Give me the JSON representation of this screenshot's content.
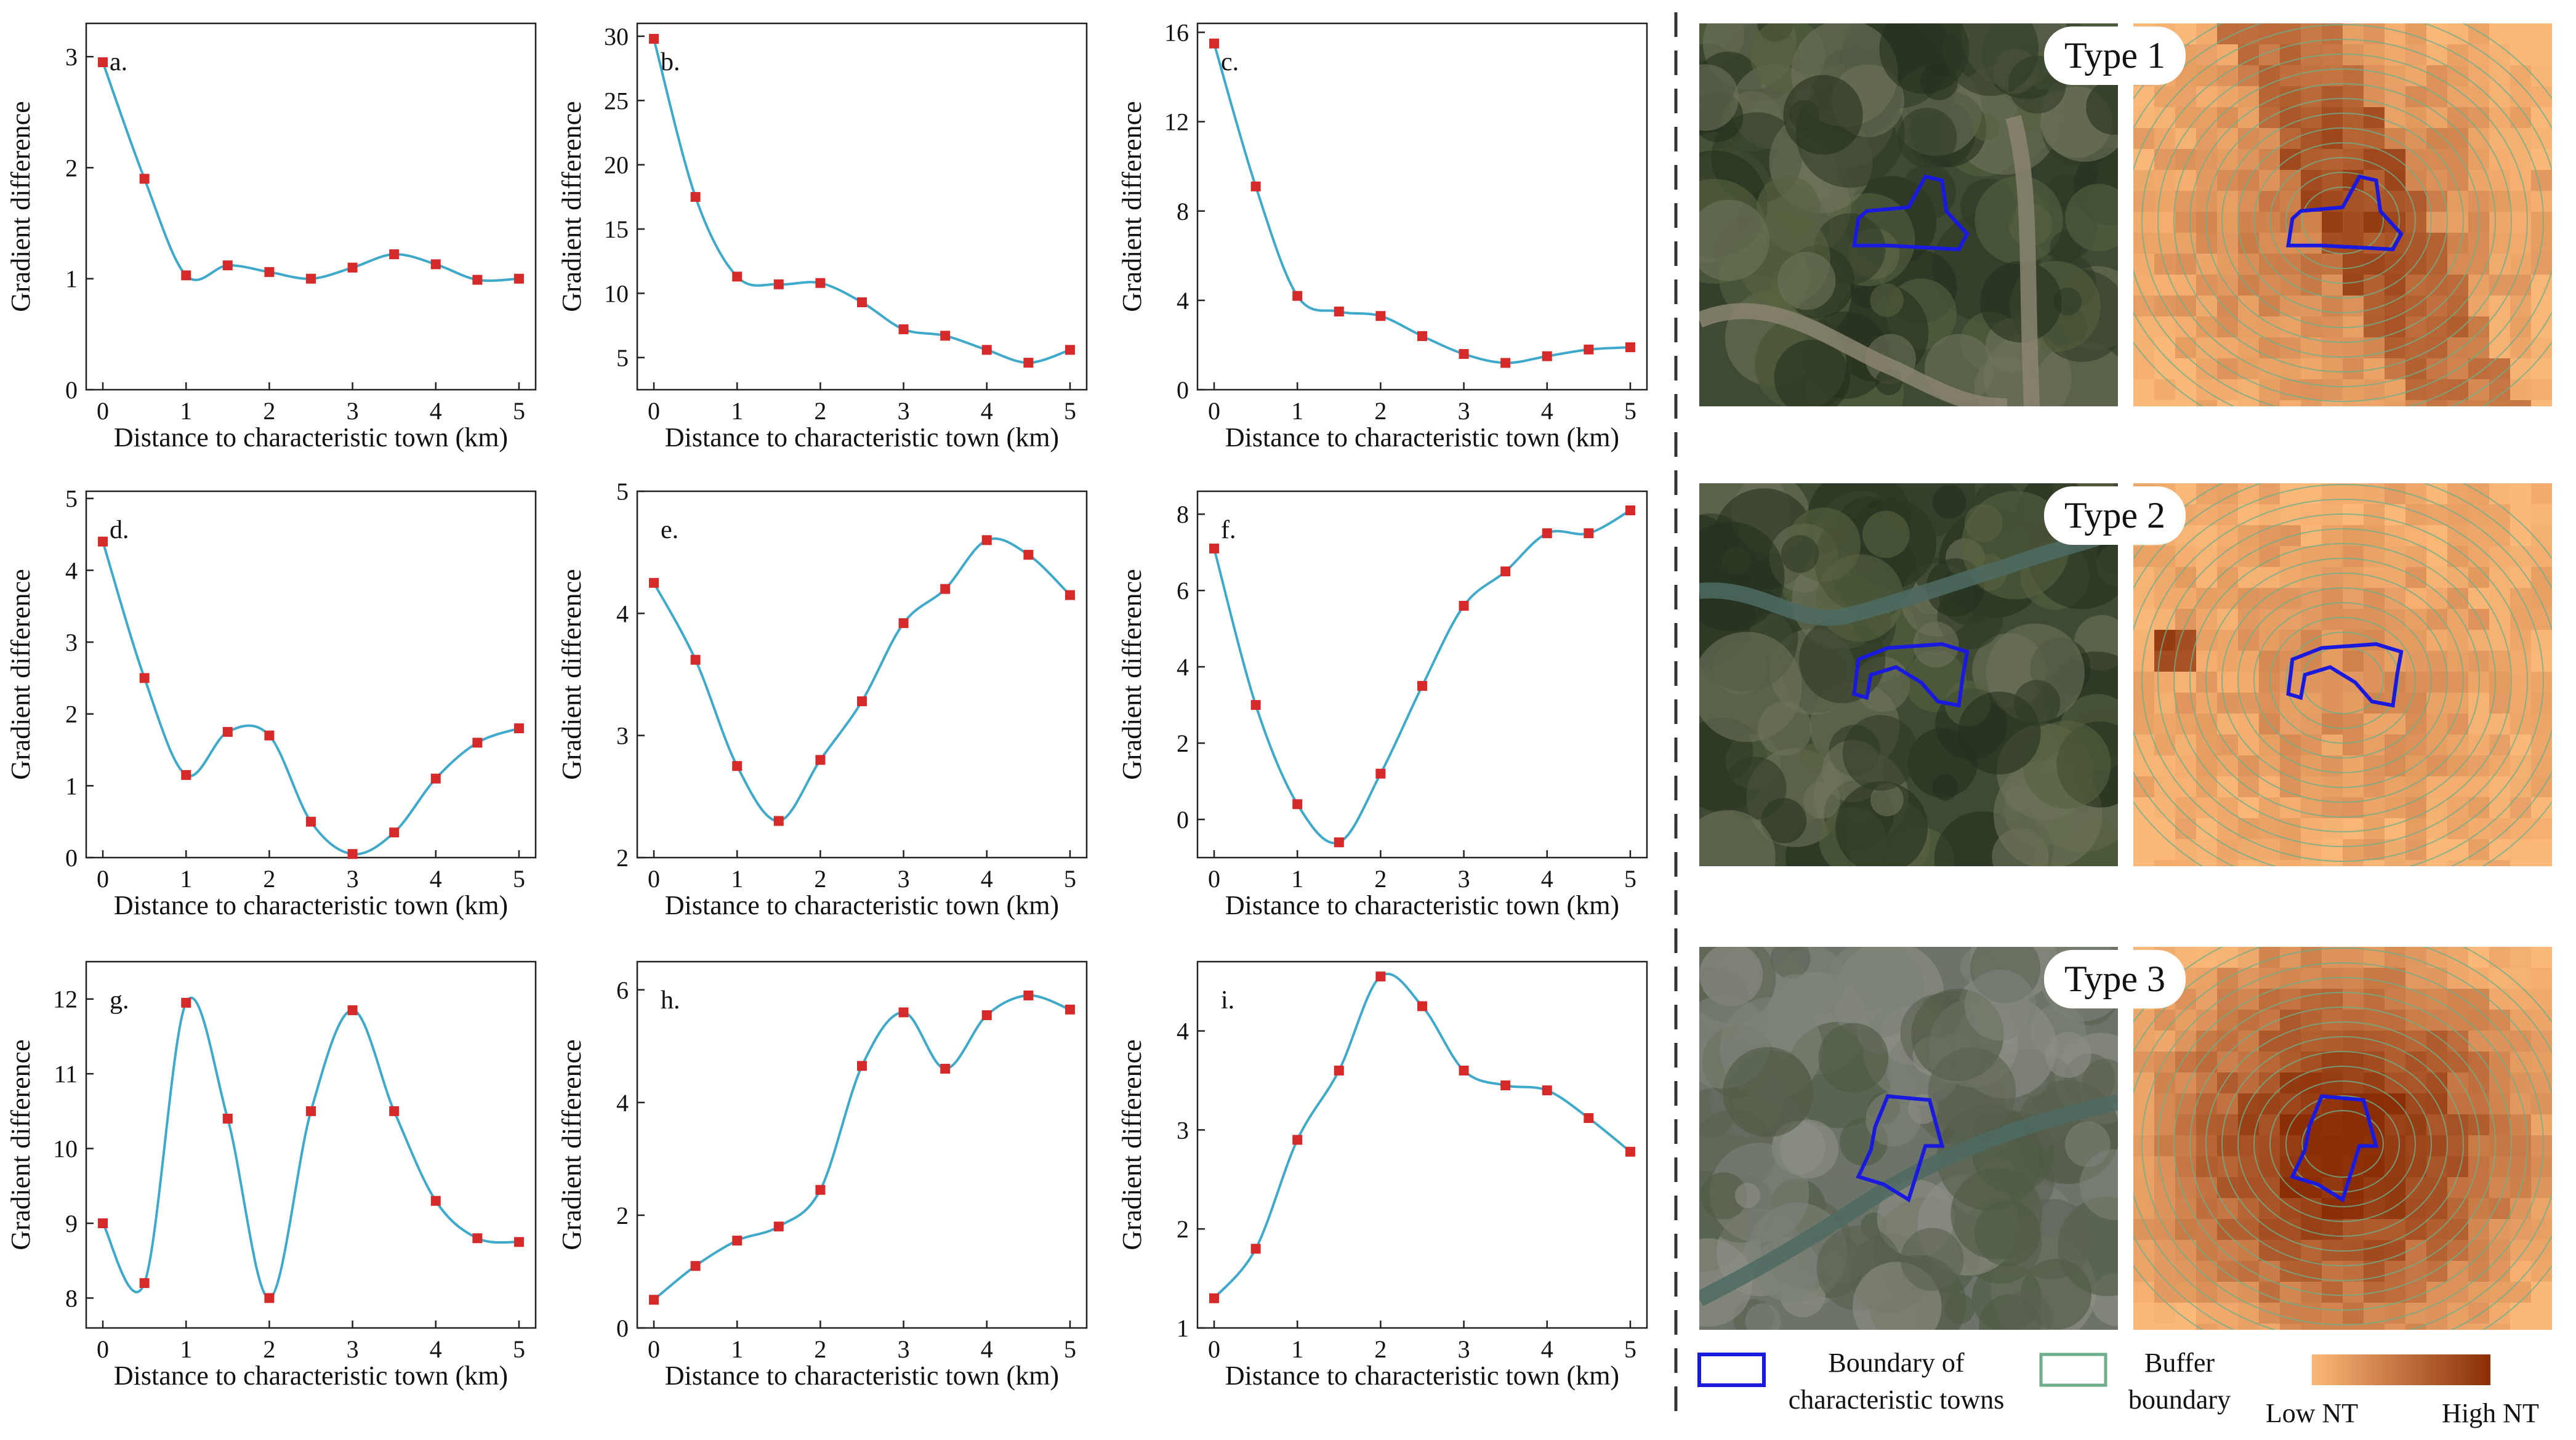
{
  "figure": {
    "divider_color": "#333333",
    "curve_color": "#3fa9c9",
    "marker_color": "#d62a2a",
    "boundary_color": "#1a1adf",
    "buffer_color": "#6fae8a",
    "nt_low_color": "#fbb878",
    "nt_high_color": "#8a2e08"
  },
  "chart_data": [
    {
      "id": "a",
      "panel_label": "a.",
      "type": "line",
      "xlabel": "Distance to characteristic town (km)",
      "ylabel": "Gradient difference",
      "x": [
        0,
        0.5,
        1,
        1.5,
        2,
        2.5,
        3,
        3.5,
        4,
        4.5,
        5
      ],
      "y": [
        2.95,
        1.9,
        1.03,
        1.12,
        1.06,
        1.0,
        1.1,
        1.22,
        1.13,
        0.99,
        1.0
      ],
      "ylim": [
        0,
        3.3
      ],
      "yticks": [
        0,
        1,
        2,
        3
      ],
      "ytick_labels": [
        "0",
        "1",
        "2",
        "3"
      ],
      "xticks": [
        0,
        1,
        2,
        3,
        4,
        5
      ],
      "xtick_labels": [
        "0",
        "1",
        "2",
        "3",
        "4",
        "5"
      ]
    },
    {
      "id": "b",
      "panel_label": "b.",
      "type": "line",
      "xlabel": "Distance to characteristic town (km)",
      "ylabel": "Gradient difference",
      "x": [
        0,
        0.5,
        1,
        1.5,
        2,
        2.5,
        3,
        3.5,
        4,
        4.5,
        5
      ],
      "y": [
        29.8,
        17.5,
        11.3,
        10.7,
        10.8,
        9.3,
        7.2,
        6.7,
        5.6,
        4.6,
        5.6
      ],
      "ylim": [
        2.5,
        31
      ],
      "yticks": [
        5,
        10,
        15,
        20,
        25,
        30
      ],
      "ytick_labels": [
        "5",
        "10",
        "15",
        "20",
        "25",
        "30"
      ],
      "xticks": [
        0,
        1,
        2,
        3,
        4,
        5
      ],
      "xtick_labels": [
        "0",
        "1",
        "2",
        "3",
        "4",
        "5"
      ]
    },
    {
      "id": "c",
      "panel_label": "c.",
      "type": "line",
      "xlabel": "Distance to characteristic town (km)",
      "ylabel": "Gradient difference",
      "x": [
        0,
        0.5,
        1,
        1.5,
        2,
        2.5,
        3,
        3.5,
        4,
        4.5,
        5
      ],
      "y": [
        15.5,
        9.1,
        4.2,
        3.5,
        3.3,
        2.4,
        1.6,
        1.2,
        1.5,
        1.8,
        1.9
      ],
      "ylim": [
        0,
        16.4
      ],
      "yticks": [
        0,
        4,
        8,
        12,
        16
      ],
      "ytick_labels": [
        "0",
        "4",
        "8",
        "12",
        "16"
      ],
      "xticks": [
        0,
        1,
        2,
        3,
        4,
        5
      ],
      "xtick_labels": [
        "0",
        "1",
        "2",
        "3",
        "4",
        "5"
      ]
    },
    {
      "id": "d",
      "panel_label": "d.",
      "type": "line",
      "xlabel": "Distance to characteristic town (km)",
      "ylabel": "Gradient difference",
      "x": [
        0,
        0.5,
        1,
        1.5,
        2,
        2.5,
        3,
        3.5,
        4,
        4.5,
        5
      ],
      "y": [
        4.4,
        2.5,
        1.15,
        1.75,
        1.7,
        0.5,
        0.05,
        0.35,
        1.1,
        1.6,
        1.8
      ],
      "ylim": [
        0,
        5.1
      ],
      "yticks": [
        0,
        1,
        2,
        3,
        4,
        5
      ],
      "ytick_labels": [
        "0",
        "1",
        "2",
        "3",
        "4",
        "5"
      ],
      "xticks": [
        0,
        1,
        2,
        3,
        4,
        5
      ],
      "xtick_labels": [
        "0",
        "1",
        "2",
        "3",
        "4",
        "5"
      ]
    },
    {
      "id": "e",
      "panel_label": "e.",
      "type": "line",
      "xlabel": "Distance to characteristic town (km)",
      "ylabel": "Gradient difference",
      "x": [
        0,
        0.5,
        1,
        1.5,
        2,
        2.5,
        3,
        3.5,
        4,
        4.5,
        5
      ],
      "y": [
        4.25,
        3.62,
        2.75,
        2.3,
        2.8,
        3.28,
        3.92,
        4.2,
        4.6,
        4.48,
        4.15
      ],
      "ylim": [
        2.0,
        5.0
      ],
      "yticks": [
        2,
        3,
        4,
        5
      ],
      "ytick_labels": [
        "2",
        "3",
        "4",
        "5"
      ],
      "xticks": [
        0,
        1,
        2,
        3,
        4,
        5
      ],
      "xtick_labels": [
        "0",
        "1",
        "2",
        "3",
        "4",
        "5"
      ]
    },
    {
      "id": "f",
      "panel_label": "f.",
      "type": "line",
      "xlabel": "Distance to characteristic town (km)",
      "ylabel": "Gradient difference",
      "x": [
        0,
        0.5,
        1,
        1.5,
        2,
        2.5,
        3,
        3.5,
        4,
        4.5,
        5
      ],
      "y": [
        7.1,
        3.0,
        0.4,
        -0.6,
        1.2,
        3.5,
        5.6,
        6.5,
        7.5,
        7.5,
        8.1
      ],
      "ylim": [
        -1,
        8.6
      ],
      "yticks": [
        0,
        2,
        4,
        6,
        8
      ],
      "ytick_labels": [
        "0",
        "2",
        "4",
        "6",
        "8"
      ],
      "xticks": [
        0,
        1,
        2,
        3,
        4,
        5
      ],
      "xtick_labels": [
        "0",
        "1",
        "2",
        "3",
        "4",
        "5"
      ]
    },
    {
      "id": "g",
      "panel_label": "g.",
      "type": "line",
      "xlabel": "Distance to characteristic town (km)",
      "ylabel": "Gradient difference",
      "x": [
        0,
        0.5,
        1,
        1.5,
        2,
        2.5,
        3,
        3.5,
        4,
        4.5,
        5
      ],
      "y": [
        9.0,
        8.2,
        11.95,
        10.4,
        8.0,
        10.5,
        11.85,
        10.5,
        9.3,
        8.8,
        8.75
      ],
      "ylim": [
        7.6,
        12.5
      ],
      "yticks": [
        8,
        9,
        10,
        11,
        12
      ],
      "ytick_labels": [
        "8",
        "9",
        "10",
        "11",
        "12"
      ],
      "xticks": [
        0,
        1,
        2,
        3,
        4,
        5
      ],
      "xtick_labels": [
        "0",
        "1",
        "2",
        "3",
        "4",
        "5"
      ]
    },
    {
      "id": "h",
      "panel_label": "h.",
      "type": "line",
      "xlabel": "Distance to characteristic town (km)",
      "ylabel": "Gradient difference",
      "x": [
        0,
        0.5,
        1,
        1.5,
        2,
        2.5,
        3,
        3.5,
        4,
        4.5,
        5
      ],
      "y": [
        0.5,
        1.1,
        1.55,
        1.8,
        2.45,
        4.65,
        5.6,
        4.6,
        5.55,
        5.9,
        5.65
      ],
      "ylim": [
        0,
        6.5
      ],
      "yticks": [
        0,
        2,
        4,
        6
      ],
      "ytick_labels": [
        "0",
        "2",
        "4",
        "6"
      ],
      "xticks": [
        0,
        1,
        2,
        3,
        4,
        5
      ],
      "xtick_labels": [
        "0",
        "1",
        "2",
        "3",
        "4",
        "5"
      ]
    },
    {
      "id": "i",
      "panel_label": "i.",
      "type": "line",
      "xlabel": "Distance to characteristic town (km)",
      "ylabel": "Gradient difference",
      "x": [
        0,
        0.5,
        1,
        1.5,
        2,
        2.5,
        3,
        3.5,
        4,
        4.5,
        5
      ],
      "y": [
        1.3,
        1.8,
        2.9,
        3.6,
        4.55,
        4.25,
        3.6,
        3.45,
        3.4,
        3.12,
        2.78
      ],
      "ylim": [
        1.0,
        4.7
      ],
      "yticks": [
        1,
        2,
        3,
        4
      ],
      "ytick_labels": [
        "1",
        "2",
        "3",
        "4"
      ],
      "xticks": [
        0,
        1,
        2,
        3,
        4,
        5
      ],
      "xtick_labels": [
        "0",
        "1",
        "2",
        "3",
        "4",
        "5"
      ]
    }
  ],
  "types": [
    {
      "id": "type-1",
      "label": "Type 1",
      "intensity": 0.35
    },
    {
      "id": "type-2",
      "label": "Type 2",
      "intensity": 0.2
    },
    {
      "id": "type-3",
      "label": "Type 3",
      "intensity": 0.85
    }
  ],
  "legend": {
    "boundary_line1": "Boundary of",
    "boundary_line2": "characteristic towns",
    "buffer_line1": "Buffer",
    "buffer_line2": "boundary",
    "low_label": "Low NT",
    "high_label": "High NT"
  }
}
